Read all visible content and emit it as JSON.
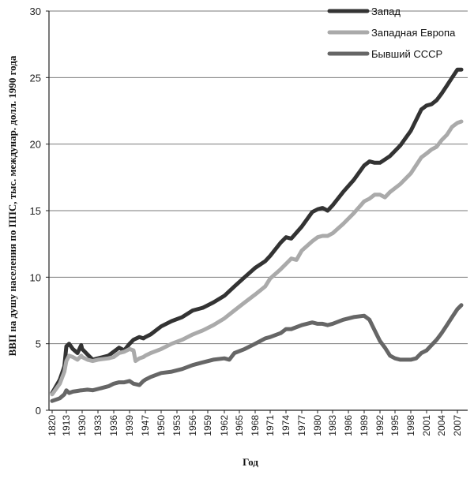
{
  "chart_data": {
    "type": "line",
    "xlabel": "Год",
    "ylabel": "ВВП на душу населения по ППС, тыс. междунар. долл. 1990 года",
    "ylim": [
      0,
      30
    ],
    "yticks": [
      0,
      5,
      10,
      15,
      20,
      25,
      30
    ],
    "grid": "horizontal",
    "legend_position": "top-right",
    "categories": [
      "1820",
      "1913",
      "1930",
      "1933",
      "1936",
      "1939",
      "1947",
      "1950",
      "1953",
      "1956",
      "1959",
      "1962",
      "1965",
      "1968",
      "1971",
      "1974",
      "1977",
      "1980",
      "1983",
      "1986",
      "1989",
      "1992",
      "1995",
      "1998",
      "2001",
      "2004",
      "2007"
    ],
    "series": [
      {
        "name": "Запад",
        "color": "#333333",
        "points": [
          [
            1820,
            1.3
          ],
          [
            1870,
            2.3
          ],
          [
            1900,
            3.3
          ],
          [
            1913,
            4.8
          ],
          [
            1916,
            5.0
          ],
          [
            1920,
            4.6
          ],
          [
            1925,
            4.3
          ],
          [
            1929,
            4.9
          ],
          [
            1930,
            4.6
          ],
          [
            1931,
            4.2
          ],
          [
            1932,
            3.8
          ],
          [
            1933,
            3.9
          ],
          [
            1935,
            4.1
          ],
          [
            1936,
            4.4
          ],
          [
            1937,
            4.7
          ],
          [
            1938,
            4.5
          ],
          [
            1939,
            5.0
          ],
          [
            1941,
            5.3
          ],
          [
            1944,
            5.5
          ],
          [
            1946,
            5.4
          ],
          [
            1947,
            5.5
          ],
          [
            1948,
            5.7
          ],
          [
            1950,
            6.3
          ],
          [
            1952,
            6.7
          ],
          [
            1954,
            7.0
          ],
          [
            1956,
            7.5
          ],
          [
            1958,
            7.7
          ],
          [
            1960,
            8.1
          ],
          [
            1962,
            8.6
          ],
          [
            1964,
            9.3
          ],
          [
            1966,
            10.0
          ],
          [
            1968,
            10.7
          ],
          [
            1970,
            11.2
          ],
          [
            1971,
            11.6
          ],
          [
            1973,
            12.6
          ],
          [
            1974,
            13.0
          ],
          [
            1975,
            12.9
          ],
          [
            1977,
            13.8
          ],
          [
            1979,
            14.9
          ],
          [
            1980,
            15.1
          ],
          [
            1981,
            15.2
          ],
          [
            1982,
            15.0
          ],
          [
            1983,
            15.4
          ],
          [
            1985,
            16.4
          ],
          [
            1987,
            17.3
          ],
          [
            1989,
            18.4
          ],
          [
            1990,
            18.7
          ],
          [
            1991,
            18.6
          ],
          [
            1992,
            18.6
          ],
          [
            1994,
            19.1
          ],
          [
            1996,
            19.9
          ],
          [
            1998,
            21.0
          ],
          [
            2000,
            22.6
          ],
          [
            2001,
            22.9
          ],
          [
            2002,
            23.0
          ],
          [
            2003,
            23.3
          ],
          [
            2004,
            23.8
          ],
          [
            2005,
            24.4
          ],
          [
            2006,
            25.0
          ],
          [
            2007,
            25.6
          ],
          [
            2008,
            25.6
          ]
        ]
      },
      {
        "name": "Западная  Европа",
        "color": "#aaaaaa",
        "points": [
          [
            1820,
            1.2
          ],
          [
            1870,
            2.0
          ],
          [
            1900,
            2.9
          ],
          [
            1913,
            3.7
          ],
          [
            1916,
            4.1
          ],
          [
            1920,
            4.0
          ],
          [
            1925,
            3.8
          ],
          [
            1929,
            4.1
          ],
          [
            1930,
            4.0
          ],
          [
            1931,
            3.8
          ],
          [
            1932,
            3.7
          ],
          [
            1933,
            3.8
          ],
          [
            1935,
            3.9
          ],
          [
            1936,
            4.0
          ],
          [
            1937,
            4.3
          ],
          [
            1938,
            4.4
          ],
          [
            1939,
            4.6
          ],
          [
            1941,
            4.5
          ],
          [
            1942,
            3.7
          ],
          [
            1944,
            3.9
          ],
          [
            1946,
            4.0
          ],
          [
            1947,
            4.1
          ],
          [
            1948,
            4.3
          ],
          [
            1950,
            4.6
          ],
          [
            1952,
            5.0
          ],
          [
            1954,
            5.3
          ],
          [
            1956,
            5.7
          ],
          [
            1958,
            6.0
          ],
          [
            1960,
            6.4
          ],
          [
            1962,
            6.9
          ],
          [
            1964,
            7.5
          ],
          [
            1966,
            8.1
          ],
          [
            1968,
            8.7
          ],
          [
            1970,
            9.3
          ],
          [
            1971,
            9.9
          ],
          [
            1973,
            10.6
          ],
          [
            1974,
            11.0
          ],
          [
            1975,
            11.4
          ],
          [
            1976,
            11.3
          ],
          [
            1977,
            12.0
          ],
          [
            1979,
            12.7
          ],
          [
            1980,
            13.0
          ],
          [
            1981,
            13.1
          ],
          [
            1982,
            13.1
          ],
          [
            1983,
            13.3
          ],
          [
            1985,
            14.0
          ],
          [
            1987,
            14.8
          ],
          [
            1989,
            15.7
          ],
          [
            1990,
            15.9
          ],
          [
            1991,
            16.2
          ],
          [
            1992,
            16.2
          ],
          [
            1993,
            16.0
          ],
          [
            1994,
            16.4
          ],
          [
            1996,
            17.0
          ],
          [
            1998,
            17.8
          ],
          [
            2000,
            19.0
          ],
          [
            2001,
            19.3
          ],
          [
            2002,
            19.6
          ],
          [
            2003,
            19.8
          ],
          [
            2004,
            20.3
          ],
          [
            2005,
            20.7
          ],
          [
            2006,
            21.3
          ],
          [
            2007,
            21.6
          ],
          [
            2008,
            21.7
          ]
        ]
      },
      {
        "name": "Бывший  СССР",
        "color": "#666666",
        "points": [
          [
            1820,
            0.7
          ],
          [
            1870,
            0.9
          ],
          [
            1900,
            1.2
          ],
          [
            1913,
            1.5
          ],
          [
            1916,
            1.3
          ],
          [
            1920,
            1.4
          ],
          [
            1925,
            1.45
          ],
          [
            1929,
            1.5
          ],
          [
            1930,
            1.5
          ],
          [
            1931,
            1.55
          ],
          [
            1932,
            1.5
          ],
          [
            1933,
            1.6
          ],
          [
            1935,
            1.8
          ],
          [
            1936,
            2.0
          ],
          [
            1937,
            2.1
          ],
          [
            1938,
            2.1
          ],
          [
            1939,
            2.2
          ],
          [
            1941,
            2.0
          ],
          [
            1944,
            1.9
          ],
          [
            1946,
            2.2
          ],
          [
            1947,
            2.3
          ],
          [
            1948,
            2.5
          ],
          [
            1950,
            2.8
          ],
          [
            1952,
            2.9
          ],
          [
            1954,
            3.1
          ],
          [
            1956,
            3.4
          ],
          [
            1958,
            3.6
          ],
          [
            1960,
            3.8
          ],
          [
            1962,
            3.9
          ],
          [
            1963,
            3.8
          ],
          [
            1964,
            4.3
          ],
          [
            1966,
            4.6
          ],
          [
            1968,
            5.0
          ],
          [
            1970,
            5.4
          ],
          [
            1971,
            5.5
          ],
          [
            1973,
            5.8
          ],
          [
            1974,
            6.1
          ],
          [
            1975,
            6.1
          ],
          [
            1977,
            6.4
          ],
          [
            1979,
            6.6
          ],
          [
            1980,
            6.5
          ],
          [
            1981,
            6.5
          ],
          [
            1982,
            6.4
          ],
          [
            1983,
            6.5
          ],
          [
            1985,
            6.8
          ],
          [
            1987,
            7.0
          ],
          [
            1989,
            7.1
          ],
          [
            1990,
            6.8
          ],
          [
            1991,
            6.0
          ],
          [
            1992,
            5.2
          ],
          [
            1993,
            4.7
          ],
          [
            1994,
            4.1
          ],
          [
            1995,
            3.9
          ],
          [
            1996,
            3.8
          ],
          [
            1997,
            3.8
          ],
          [
            1998,
            3.8
          ],
          [
            1999,
            3.9
          ],
          [
            2000,
            4.3
          ],
          [
            2001,
            4.5
          ],
          [
            2002,
            4.9
          ],
          [
            2003,
            5.3
          ],
          [
            2004,
            5.8
          ],
          [
            2005,
            6.4
          ],
          [
            2006,
            7.0
          ],
          [
            2007,
            7.6
          ],
          [
            2008,
            7.9
          ]
        ]
      }
    ]
  }
}
